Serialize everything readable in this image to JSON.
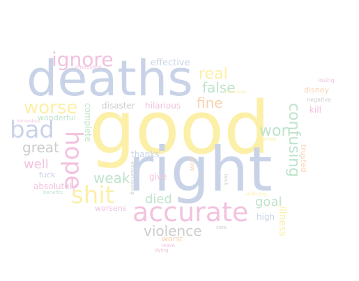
{
  "words": [
    {
      "id": "good",
      "text": "good",
      "color": "#fcefa8"
    },
    {
      "id": "right",
      "text": "right",
      "color": "#c9d3e8"
    },
    {
      "id": "deaths",
      "text": "deaths",
      "color": "#c9d3e8"
    },
    {
      "id": "accurate",
      "text": "accurate",
      "color": "#f2c2de"
    },
    {
      "id": "ignore",
      "text": "ignore",
      "color": "#f2c2de"
    },
    {
      "id": "hope",
      "text": "hope",
      "color": "#f2c2de"
    },
    {
      "id": "shit",
      "text": "shit",
      "color": "#fcefa8"
    },
    {
      "id": "worse",
      "text": "worse",
      "color": "#fcefa8"
    },
    {
      "id": "bad",
      "text": "bad",
      "color": "#c9d3e8"
    },
    {
      "id": "real",
      "text": "real",
      "color": "#fcefa8"
    },
    {
      "id": "false",
      "text": "false",
      "color": "#bfe3cc"
    },
    {
      "id": "fine",
      "text": "fine",
      "color": "#f8d2b0"
    },
    {
      "id": "won",
      "text": "won",
      "color": "#bfe3cc"
    },
    {
      "id": "confusing",
      "text": "confusing",
      "color": "#bfe3cc"
    },
    {
      "id": "violence",
      "text": "violence",
      "color": "#cccccc"
    },
    {
      "id": "great",
      "text": "great",
      "color": "#cccccc"
    },
    {
      "id": "well",
      "text": "well",
      "color": "#f2c2de"
    },
    {
      "id": "weak",
      "text": "weak",
      "color": "#bfe3cc"
    },
    {
      "id": "died",
      "text": "died",
      "color": "#bfe3cc"
    },
    {
      "id": "goal",
      "text": "goal",
      "color": "#bfe3cc"
    },
    {
      "id": "effective",
      "text": "effective",
      "color": "#c9d3e8"
    },
    {
      "id": "disaster",
      "text": "disaster",
      "color": "#cccccc"
    },
    {
      "id": "hilarious",
      "text": "hilarious",
      "color": "#f2c2de"
    },
    {
      "id": "complete",
      "text": "complete",
      "color": "#bfe3cc"
    },
    {
      "id": "wonderful",
      "text": "wonderful",
      "color": "#bfe3cc"
    },
    {
      "id": "thanks",
      "text": "thanks",
      "color": "#c9d3e8"
    },
    {
      "id": "absolutely",
      "text": "absolutely",
      "color": "#f2c2de"
    },
    {
      "id": "fuck",
      "text": "fuck",
      "color": "#c9d3e8"
    },
    {
      "id": "give",
      "text": "give",
      "color": "#f2c2de"
    },
    {
      "id": "worsens",
      "text": "worsens",
      "color": "#f2c2de"
    },
    {
      "id": "worst",
      "text": "worst",
      "color": "#f8d2b0"
    },
    {
      "id": "high",
      "text": "high",
      "color": "#c9d3e8"
    },
    {
      "id": "illness",
      "text": "illness",
      "color": "#fcefa8"
    },
    {
      "id": "disney",
      "text": "disney",
      "color": "#f8d2b0"
    },
    {
      "id": "kill",
      "text": "kill",
      "color": "#f2c2de"
    },
    {
      "id": "trusted",
      "text": "trusted",
      "color": "#f8d2b0"
    },
    {
      "id": "slow",
      "text": "slow",
      "color": "#f8d2b0"
    },
    {
      "id": "interesting",
      "text": "interesting",
      "color": "#f2c2de"
    },
    {
      "id": "horrendous",
      "text": "horrendous",
      "color": "#f2c2de"
    },
    {
      "id": "losing",
      "text": "losing",
      "color": "#f2c2de"
    },
    {
      "id": "negative",
      "text": "negative",
      "color": "#cccccc"
    },
    {
      "id": "selfish",
      "text": "selfish",
      "color": "#fcefa8"
    },
    {
      "id": "suffering",
      "text": "suffering",
      "color": "#fcefa8"
    },
    {
      "id": "back",
      "text": "back",
      "color": "#cccccc"
    },
    {
      "id": "embarrassing",
      "text": "embarrassing",
      "color": "#cccccc"
    },
    {
      "id": "benefits",
      "text": "benefits",
      "color": "#bfe3cc"
    },
    {
      "id": "care",
      "text": "care",
      "color": "#cccccc"
    },
    {
      "id": "leave",
      "text": "leave",
      "color": "#f2c2de"
    },
    {
      "id": "dying",
      "text": "dying",
      "color": "#f2c2de"
    },
    {
      "id": "conclusion",
      "text": "conclusion",
      "color": "#fcefa8"
    }
  ]
}
